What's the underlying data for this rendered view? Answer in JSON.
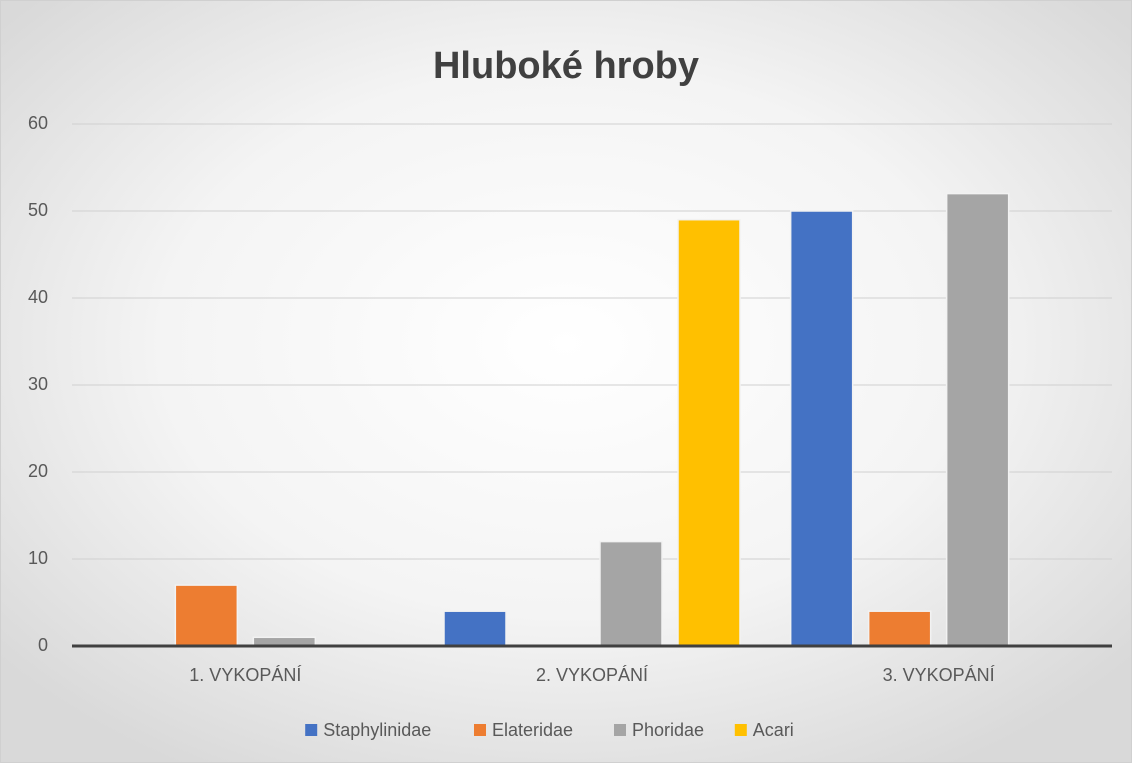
{
  "chart_data": {
    "type": "bar",
    "title": "Hluboké hroby",
    "categories": [
      "1. VYKOPÁNÍ",
      "2. VYKOPÁNÍ",
      "3. VYKOPÁNÍ"
    ],
    "series": [
      {
        "name": "Staphylinidae",
        "color": "#4472c4",
        "values": [
          0,
          4,
          50
        ]
      },
      {
        "name": "Elateridae",
        "color": "#ed7d31",
        "values": [
          7,
          0,
          4
        ]
      },
      {
        "name": "Phoridae",
        "color": "#a5a5a5",
        "values": [
          1,
          12,
          52
        ]
      },
      {
        "name": "Acari",
        "color": "#ffc000",
        "values": [
          0,
          49,
          0
        ]
      }
    ],
    "ylim": [
      0,
      60
    ],
    "yticks": [
      0,
      10,
      20,
      30,
      40,
      50,
      60
    ],
    "grid": true,
    "legend": "bottom"
  }
}
